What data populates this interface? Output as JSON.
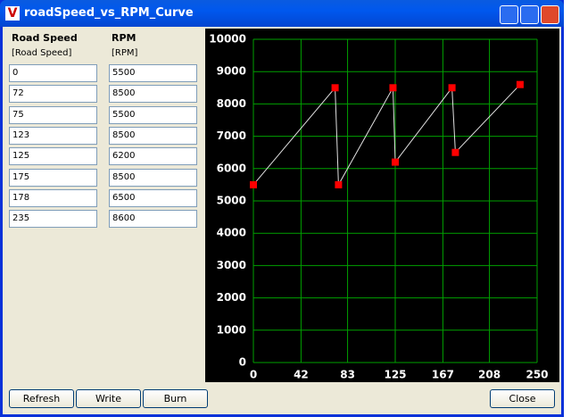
{
  "window": {
    "title": "roadSpeed_vs_RPM_Curve"
  },
  "table": {
    "headers": [
      "Road Speed",
      "RPM"
    ],
    "units": [
      "[Road Speed]",
      "[RPM]"
    ]
  },
  "buttons": [
    "Refresh",
    "Write",
    "Burn"
  ],
  "close": "Close",
  "chart_data": {
    "type": "line",
    "x": [
      0,
      72,
      75,
      123,
      125,
      175,
      178,
      235
    ],
    "values": [
      5500,
      8500,
      5500,
      8500,
      6200,
      8500,
      6500,
      8600
    ],
    "color": "#e0e0e0",
    "marker_color": "#ff0000",
    "grid_color": "#00a000",
    "xlim": [
      0,
      250
    ],
    "xticks": [
      0,
      42,
      83,
      125,
      167,
      208,
      250
    ],
    "ylim": [
      0,
      10000
    ],
    "yticks": [
      0,
      1000,
      2000,
      3000,
      4000,
      5000,
      6000,
      7000,
      8000,
      9000,
      10000
    ],
    "grid": true
  }
}
